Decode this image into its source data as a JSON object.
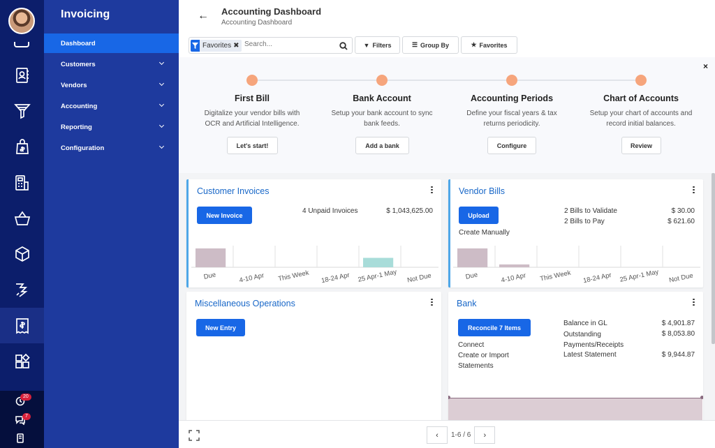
{
  "rail": {
    "items": [
      {
        "icon": "contacts-icon"
      },
      {
        "icon": "crm-funnel-icon"
      },
      {
        "icon": "sales-bag-icon"
      },
      {
        "icon": "pos-icon"
      },
      {
        "icon": "shop-basket-icon"
      },
      {
        "icon": "inventory-box-icon"
      },
      {
        "icon": "manufacturing-icon"
      },
      {
        "icon": "invoicing-icon"
      },
      {
        "icon": "apps-icon"
      }
    ],
    "activities_count": "20",
    "messages_count": "7"
  },
  "sidebar": {
    "app_title": "Invoicing",
    "items": [
      {
        "label": "Dashboard"
      },
      {
        "label": "Customers"
      },
      {
        "label": "Vendors"
      },
      {
        "label": "Accounting"
      },
      {
        "label": "Reporting"
      },
      {
        "label": "Configuration"
      }
    ]
  },
  "header": {
    "title": "Accounting Dashboard",
    "breadcrumb": "Accounting Dashboard",
    "facet_label": "Favorites",
    "search_placeholder": "Search...",
    "filters_label": "Filters",
    "groupby_label": "Group By",
    "favorites_label": "Favorites"
  },
  "onboarding": {
    "steps": [
      {
        "title": "First Bill",
        "desc1": "Digitalize your vendor bills with",
        "desc2": "OCR and Artificial Intelligence.",
        "button": "Let's start!"
      },
      {
        "title": "Bank Account",
        "desc1": "Setup your bank account to sync",
        "desc2": "bank feeds.",
        "button": "Add a bank"
      },
      {
        "title": "Accounting Periods",
        "desc1": "Define your fiscal years & tax",
        "desc2": "returns periodicity.",
        "button": "Configure"
      },
      {
        "title": "Chart of Accounts",
        "desc1": "Setup your chart of accounts and",
        "desc2": "record initial balances.",
        "button": "Review"
      }
    ],
    "close": "×"
  },
  "customer_invoices": {
    "title": "Customer Invoices",
    "button": "New Invoice",
    "unpaid_label": "4 Unpaid Invoices",
    "unpaid_amount": "$ 1,043,625.00",
    "chart_data": {
      "type": "bar",
      "categories": [
        "Due",
        "4-10 Apr",
        "This Week",
        "18-24 Apr",
        "25 Apr-1 May",
        "Not Due"
      ],
      "values": [
        1,
        0,
        0,
        0,
        0.5,
        0
      ],
      "colors": [
        "#cdbcc6",
        "#cdbcc6",
        "#cdbcc6",
        "#cdbcc6",
        "#a8dcd9",
        "#cdbcc6"
      ]
    }
  },
  "vendor_bills": {
    "title": "Vendor Bills",
    "button": "Upload",
    "create_manually": "Create Manually",
    "validate_label": "2 Bills to Validate",
    "validate_amount": "$ 30.00",
    "pay_label": "2 Bills to Pay",
    "pay_amount": "$ 621.60",
    "chart_data": {
      "type": "bar",
      "categories": [
        "Due",
        "4-10 Apr",
        "This Week",
        "18-24 Apr",
        "25 Apr-1 May",
        "Not Due"
      ],
      "values": [
        1,
        0.15,
        0,
        0,
        0,
        0
      ],
      "colors": [
        "#cdbcc6",
        "#cdbcc6",
        "#cdbcc6",
        "#cdbcc6",
        "#cdbcc6",
        "#cdbcc6"
      ]
    }
  },
  "misc_operations": {
    "title": "Miscellaneous Operations",
    "button": "New Entry"
  },
  "bank": {
    "title": "Bank",
    "button": "Reconcile 7 Items",
    "connect": "Connect",
    "import_1": "Create or Import",
    "import_2": "Statements",
    "balance_label": "Balance in GL",
    "balance_amount": "$ 4,901.87",
    "outstanding_label_1": "Outstanding",
    "outstanding_label_2": "Payments/Receipts",
    "outstanding_amount": "$ 8,053.80",
    "statement_label": "Latest Statement",
    "statement_amount": "$ 9,944.87"
  },
  "footer": {
    "pager_value": "1-6 / 6",
    "prev": "‹",
    "next": "›"
  }
}
